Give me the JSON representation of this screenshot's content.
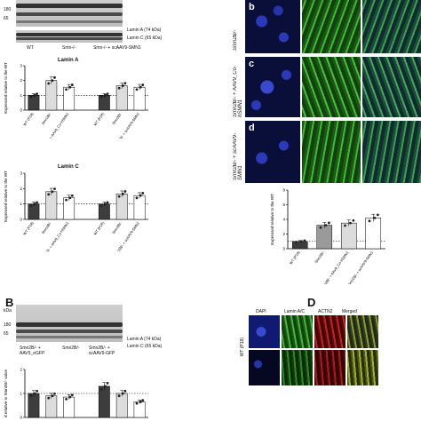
{
  "colors": {
    "blue": "#1a2aa8",
    "green": "#2f9a2a",
    "red": "#b01818",
    "merged": "#4a6a2a",
    "bar_light": "#dcdcdc",
    "bar_dark": "#3d3d3d"
  },
  "panelA": {
    "kda_labels": [
      "180",
      "65"
    ],
    "blot_labels": [
      "Lamin A (74 kDa)",
      "Lamin C (65 kDa)"
    ],
    "lane_groups": [
      "WT",
      "Smn-/-",
      "Smn-/- + scAAV9-SMN1"
    ],
    "chartA": {
      "title": "Lamin A",
      "ylabel": "Expressed relative to the WT"
    },
    "chartC": {
      "title": "Lamin C",
      "ylabel": "Expressed relative to the WT"
    },
    "xlabels": [
      "WT (P18)",
      "Smn2B/-",
      "Smn2B/- + AAV9_Co-hSMN1",
      "WT (P18)",
      "Smn2B/-",
      "Smn2B/- + scAAV9-SMN1"
    ]
  },
  "panelRight": {
    "row_letters": [
      "b",
      "c",
      "d"
    ],
    "row_labels": [
      "Smn2B/-",
      "Smn2B/- + AAV9_Co-hSMN1",
      "Smn2B/- + scAAV9-SMN1"
    ],
    "chart": {
      "ylabel": "Expressed relative to the WT",
      "xlabels": [
        "WT (P18)",
        "Smn2B/-",
        "Smn2B/- + AAV9_Co-hSMN1",
        "Smn2B/- + scAAV9-SMN1"
      ]
    }
  },
  "panelB": {
    "letter": "B",
    "kda": "kDa",
    "kda_labels": [
      "180",
      "65"
    ],
    "blot_labels": [
      "Lamin A (74 kDa)",
      "Lamin C (65 kDa)"
    ],
    "lane_groups": [
      "Smn2B/- + AAV9_eGFP",
      "Smn2B/-",
      "Smn2B/- + scAAV9-GFP"
    ],
    "chart_ylabel": "d relative to Smn2B/- value"
  },
  "panelD": {
    "letter": "D",
    "columns": [
      "DAPI",
      "Lamin A/C",
      "ACTN2",
      "Merged"
    ],
    "row_label": "WT (P18)"
  },
  "chart_data": [
    {
      "type": "bar",
      "title": "Lamin A",
      "ylabel": "Expressed relative to the WT",
      "categories": [
        "WT (P18)",
        "Smn2B/-",
        "Smn2B/- + AAV9_Co-hSMN1",
        "WT (P18)",
        "Smn2B/-",
        "Smn2B/- + scAAV9-SMN1"
      ],
      "values": [
        1.0,
        2.0,
        1.55,
        1.0,
        1.65,
        1.55
      ],
      "ylim": [
        0,
        3
      ],
      "reference_line": 1
    },
    {
      "type": "bar",
      "title": "Lamin C",
      "ylabel": "Expressed relative to the WT",
      "categories": [
        "WT (P18)",
        "Smn2B/-",
        "Smn2B/- + AAV9_Co-hSMN1",
        "WT (P18)",
        "Smn2B/-",
        "Smn2B/- + scAAV9-SMN1"
      ],
      "values": [
        1.0,
        1.8,
        1.4,
        1.0,
        1.65,
        1.55
      ],
      "ylim": [
        0,
        3
      ],
      "reference_line": 1
    },
    {
      "type": "bar",
      "ylabel": "Expressed relative to the WT",
      "categories": [
        "WT (P18)",
        "Smn2B/-",
        "Smn2B/- + AAV9_Co-hSMN1",
        "Smn2B/- + scAAV9-SMN1"
      ],
      "values": [
        1.0,
        3.2,
        3.5,
        4.2
      ],
      "ylim": [
        0,
        8
      ],
      "reference_line": 1
    },
    {
      "type": "bar",
      "ylabel": "d relative to Smn2B/- value",
      "categories": [
        "Smn2B/- + AAV9_eGFP",
        "Smn2B/-",
        "Smn2B/- + scAAV9-GFP",
        "Smn2B/- + AAV9_eGFP",
        "Smn2B/-",
        "Smn2B/- + scAAV9-GFP"
      ],
      "values": [
        1.0,
        0.9,
        0.85,
        1.3,
        1.0,
        0.65
      ],
      "ylim": [
        0,
        2
      ],
      "reference_line": 1
    }
  ]
}
